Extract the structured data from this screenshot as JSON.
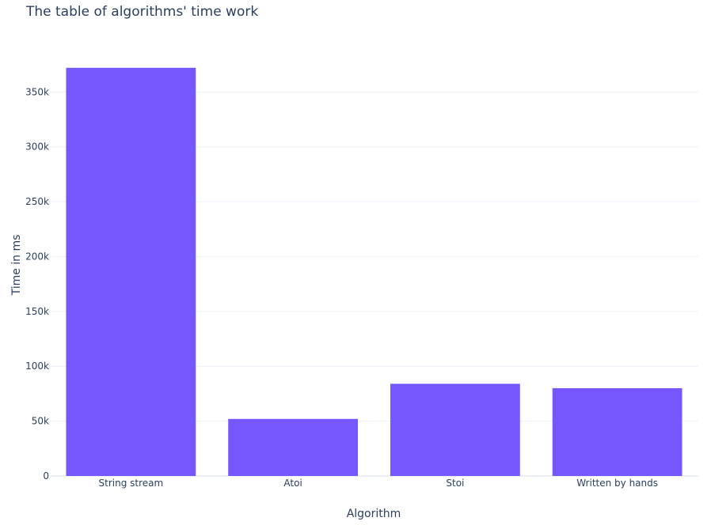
{
  "chart_data": {
    "type": "bar",
    "title": "The table of algorithms' time work",
    "xlabel": "Algorithm",
    "ylabel": "Time in ms",
    "categories": [
      "String stream",
      "Atoi",
      "Stoi",
      "Written by hands"
    ],
    "values": [
      372000,
      52000,
      84000,
      80000
    ],
    "ylim": [
      0,
      392000
    ],
    "yticks": [
      0,
      50000,
      100000,
      150000,
      200000,
      250000,
      300000,
      350000
    ],
    "ytick_labels": [
      "0",
      "50k",
      "100k",
      "150k",
      "200k",
      "250k",
      "300k",
      "350k"
    ],
    "bar_color": "#7557fd",
    "grid": true,
    "legend": "none"
  }
}
